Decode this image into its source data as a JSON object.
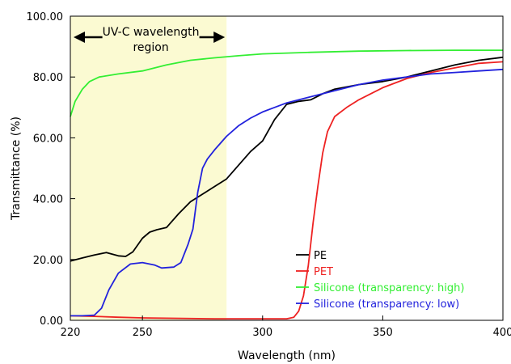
{
  "chart_data": {
    "type": "line",
    "title": "",
    "xlabel": "Wavelength (nm)",
    "ylabel": "Transmittance (%)",
    "xlim": [
      220,
      400
    ],
    "ylim": [
      0,
      100
    ],
    "x_ticks": [
      220,
      250,
      300,
      350,
      400
    ],
    "y_ticks": [
      0,
      20,
      40,
      60,
      80,
      100
    ],
    "x_tick_labels": [
      "220",
      "250",
      "300",
      "350",
      "400"
    ],
    "y_tick_labels": [
      "0.00",
      "20.00",
      "40.00",
      "60.00",
      "80.00",
      "100.00"
    ],
    "grid": false,
    "legend_position": "bottom-right",
    "shaded_region": {
      "x_range": [
        220,
        285
      ],
      "color": "#fbfad2",
      "label_lines": [
        "UV-C wavelength",
        "region"
      ]
    },
    "series": [
      {
        "name": "PE",
        "color": "#000000",
        "points": [
          [
            220,
            19.5
          ],
          [
            225,
            20.5
          ],
          [
            230,
            21.5
          ],
          [
            235,
            22.3
          ],
          [
            240,
            21.2
          ],
          [
            243,
            21
          ],
          [
            246,
            22.5
          ],
          [
            250,
            27
          ],
          [
            253,
            29
          ],
          [
            256,
            29.8
          ],
          [
            260,
            30.5
          ],
          [
            265,
            35
          ],
          [
            270,
            39
          ],
          [
            275,
            41.5
          ],
          [
            280,
            44
          ],
          [
            285,
            46.5
          ],
          [
            290,
            51
          ],
          [
            295,
            55.5
          ],
          [
            300,
            59
          ],
          [
            305,
            66
          ],
          [
            310,
            71
          ],
          [
            315,
            72
          ],
          [
            320,
            72.5
          ],
          [
            325,
            74.5
          ],
          [
            330,
            76
          ],
          [
            340,
            77.5
          ],
          [
            350,
            78.5
          ],
          [
            360,
            80
          ],
          [
            370,
            82
          ],
          [
            380,
            84
          ],
          [
            390,
            85.5
          ],
          [
            400,
            86.5
          ]
        ]
      },
      {
        "name": "PET",
        "color": "#ee2222",
        "points": [
          [
            220,
            1.5
          ],
          [
            230,
            1.3
          ],
          [
            240,
            1
          ],
          [
            250,
            0.8
          ],
          [
            260,
            0.7
          ],
          [
            280,
            0.5
          ],
          [
            300,
            0.5
          ],
          [
            310,
            0.5
          ],
          [
            313,
            1
          ],
          [
            315,
            3
          ],
          [
            317,
            8
          ],
          [
            319,
            18
          ],
          [
            321,
            32
          ],
          [
            323,
            44
          ],
          [
            325,
            55
          ],
          [
            327,
            62
          ],
          [
            330,
            67
          ],
          [
            335,
            70
          ],
          [
            340,
            72.5
          ],
          [
            345,
            74.5
          ],
          [
            350,
            76.5
          ],
          [
            360,
            79.5
          ],
          [
            370,
            81.5
          ],
          [
            380,
            83
          ],
          [
            390,
            84.5
          ],
          [
            400,
            85
          ]
        ]
      },
      {
        "name": "Silicone (transparency: high)",
        "color": "#33ee33",
        "points": [
          [
            220,
            67
          ],
          [
            222,
            72
          ],
          [
            225,
            76
          ],
          [
            228,
            78.5
          ],
          [
            232,
            80
          ],
          [
            240,
            81
          ],
          [
            250,
            82
          ],
          [
            260,
            84
          ],
          [
            270,
            85.5
          ],
          [
            280,
            86.3
          ],
          [
            290,
            87
          ],
          [
            300,
            87.6
          ],
          [
            320,
            88.1
          ],
          [
            340,
            88.5
          ],
          [
            360,
            88.7
          ],
          [
            380,
            88.8
          ],
          [
            400,
            88.8
          ]
        ]
      },
      {
        "name": "Silicone (transparency: low)",
        "color": "#2222dd",
        "points": [
          [
            220,
            1.5
          ],
          [
            225,
            1.5
          ],
          [
            230,
            1.7
          ],
          [
            233,
            4
          ],
          [
            236,
            10
          ],
          [
            240,
            15.5
          ],
          [
            245,
            18.5
          ],
          [
            250,
            19
          ],
          [
            255,
            18.2
          ],
          [
            258,
            17.2
          ],
          [
            263,
            17.5
          ],
          [
            266,
            19
          ],
          [
            269,
            25
          ],
          [
            271,
            30
          ],
          [
            273,
            42
          ],
          [
            275,
            50
          ],
          [
            277,
            53
          ],
          [
            280,
            56
          ],
          [
            285,
            60.5
          ],
          [
            290,
            64
          ],
          [
            295,
            66.5
          ],
          [
            300,
            68.5
          ],
          [
            305,
            70
          ],
          [
            310,
            71.5
          ],
          [
            320,
            73.5
          ],
          [
            330,
            75.5
          ],
          [
            340,
            77.5
          ],
          [
            350,
            79
          ],
          [
            360,
            80
          ],
          [
            370,
            81
          ],
          [
            380,
            81.5
          ],
          [
            390,
            82
          ],
          [
            400,
            82.5
          ]
        ]
      }
    ]
  }
}
